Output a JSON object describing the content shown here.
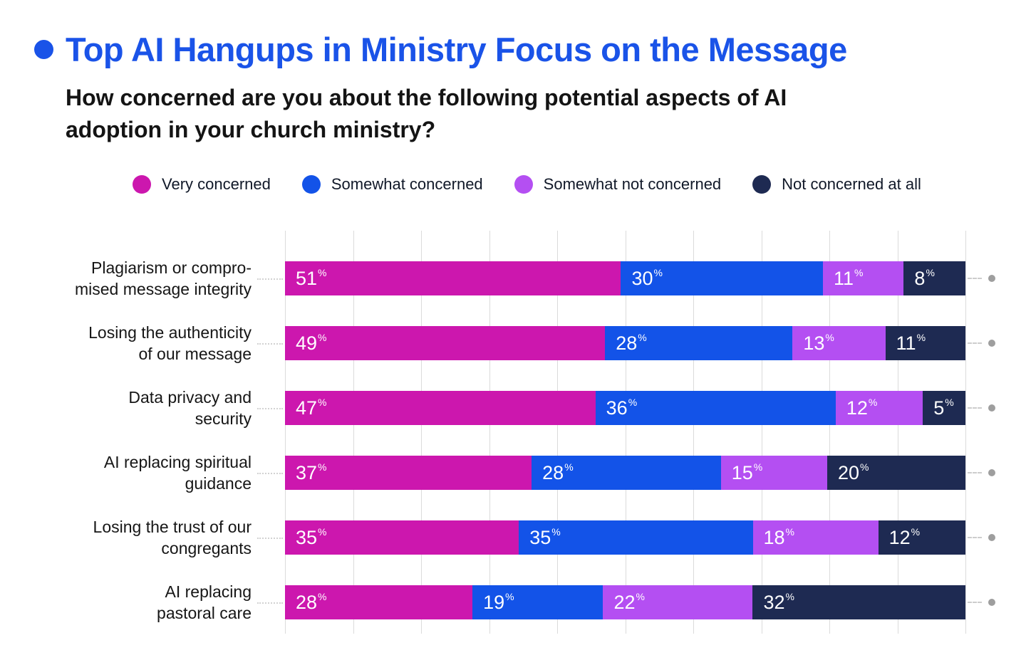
{
  "page": {
    "background": "#FFFFFF"
  },
  "header": {
    "bullet_color": "#1A53E8",
    "title": "Top AI Hangups in Ministry Focus on the Message",
    "title_color": "#1A53E8",
    "subtitle_lines": [
      "How concerned are you about the following potential aspects of AI",
      "adoption in your church ministry?"
    ]
  },
  "legend": {
    "items": [
      {
        "label": "Very concerned",
        "color": "#CC17AE"
      },
      {
        "label": "Somewhat concerned",
        "color": "#1353E8"
      },
      {
        "label": "Somewhat not concerned",
        "color": "#B44FF2"
      },
      {
        "label": "Not concerned at all",
        "color": "#1E2A52"
      }
    ]
  },
  "chart_data": {
    "type": "bar",
    "orientation": "horizontal",
    "stacked": true,
    "value_suffix": "%",
    "xlim": [
      0,
      100
    ],
    "grid": true,
    "grid_divisions": 10,
    "gridline_color": "#DBDBDB",
    "marker_dot_color": "#9E9E9E",
    "categories": [
      [
        "Plagiarism or compro-",
        "mised message integrity"
      ],
      [
        "Losing the authenticity",
        "of our message"
      ],
      [
        "Data privacy and",
        "security"
      ],
      [
        "AI replacing spiritual",
        "guidance"
      ],
      [
        "Losing the trust of our",
        "congregants"
      ],
      [
        "AI replacing",
        "pastoral care"
      ]
    ],
    "series": [
      {
        "name": "Very concerned",
        "color": "#CC17AE",
        "values": [
          51,
          49,
          47,
          37,
          35,
          28
        ]
      },
      {
        "name": "Somewhat concerned",
        "color": "#1353E8",
        "values": [
          30,
          28,
          36,
          28,
          35,
          19
        ]
      },
      {
        "name": "Somewhat not concerned",
        "color": "#B44FF2",
        "values": [
          11,
          13,
          12,
          15,
          18,
          22
        ]
      },
      {
        "name": "Not concerned at all",
        "color": "#1E2A52",
        "values": [
          8,
          11,
          5,
          20,
          12,
          32
        ]
      }
    ]
  }
}
